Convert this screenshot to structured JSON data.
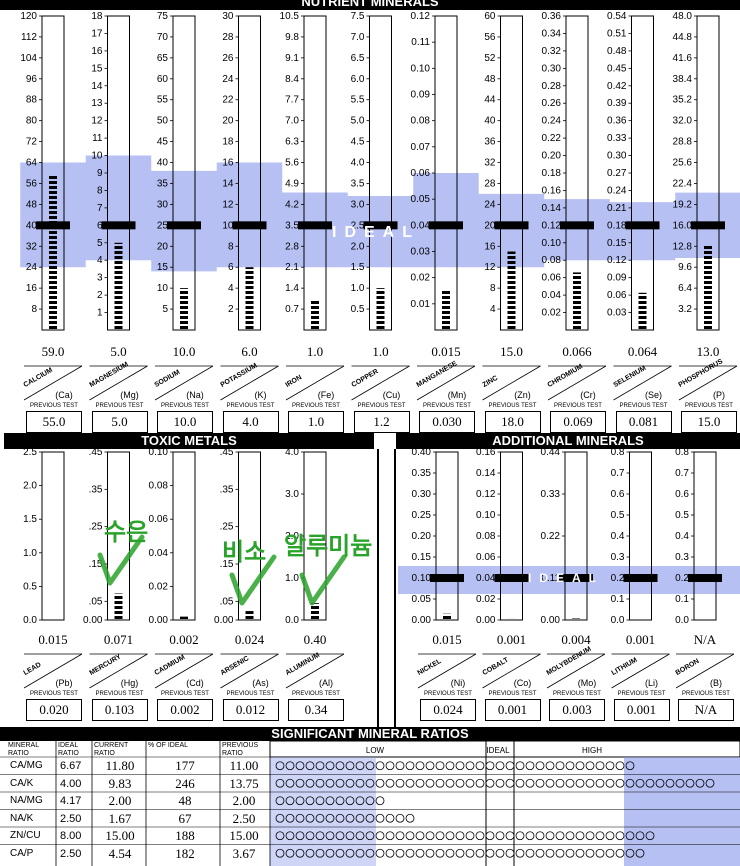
{
  "sections": {
    "nutrient": "NUTRIENT MINERALS",
    "toxic": "TOXIC METALS",
    "additional": "ADDITIONAL MINERALS",
    "ratios": "SIGNIFICANT MINERAL RATIOS"
  },
  "ideal_label": "IDEAL",
  "previous_test_label": "PREVIOUS TEST",
  "colors": {
    "band": "#aeb9f2",
    "bar": "#000000",
    "ideal_marker": "#000000",
    "check": "#2aa32a"
  },
  "chart_data": [
    {
      "type": "bar",
      "title": "NUTRIENT MINERALS",
      "minerals": [
        {
          "name": "CALCIUM",
          "symbol": "(Ca)",
          "value": "59.0",
          "previous": "55.0",
          "max": 120,
          "ticks": [
            "120",
            "112",
            "104",
            "96",
            "88",
            "80",
            "72",
            "64",
            "56",
            "48",
            "40",
            "32",
            "24",
            "16",
            "8"
          ],
          "tickvals": [
            120,
            112,
            104,
            96,
            88,
            80,
            72,
            64,
            56,
            48,
            40,
            32,
            24,
            16,
            8
          ],
          "ideal": 40,
          "band": [
            24,
            64
          ],
          "level": 59
        },
        {
          "name": "MAGNESIUM",
          "symbol": "(Mg)",
          "value": "5.0",
          "previous": "5.0",
          "max": 18,
          "ticks": [
            "18",
            "17",
            "16",
            "15",
            "14",
            "13",
            "12",
            "11",
            "10",
            "9",
            "8",
            "7",
            "6",
            "5",
            "4",
            "3",
            "2",
            "1"
          ],
          "tickvals": [
            18,
            17,
            16,
            15,
            14,
            13,
            12,
            11,
            10,
            9,
            8,
            7,
            6,
            5,
            4,
            3,
            2,
            1
          ],
          "ideal": 6,
          "band": [
            4,
            10
          ],
          "level": 5
        },
        {
          "name": "SODIUM",
          "symbol": "(Na)",
          "value": "10.0",
          "previous": "10.0",
          "max": 75,
          "ticks": [
            "75",
            "70",
            "65",
            "60",
            "55",
            "50",
            "45",
            "40",
            "35",
            "30",
            "25",
            "20",
            "15",
            "10",
            "5"
          ],
          "tickvals": [
            75,
            70,
            65,
            60,
            55,
            50,
            45,
            40,
            35,
            30,
            25,
            20,
            15,
            10,
            5
          ],
          "ideal": 25,
          "band": [
            14,
            38
          ],
          "level": 10
        },
        {
          "name": "POTASSIUM",
          "symbol": "(K)",
          "value": "6.0",
          "previous": "4.0",
          "max": 30,
          "ticks": [
            "30",
            "28",
            "26",
            "24",
            "22",
            "20",
            "18",
            "16",
            "14",
            "12",
            "10",
            "8",
            "6",
            "4",
            "2"
          ],
          "tickvals": [
            30,
            28,
            26,
            24,
            22,
            20,
            18,
            16,
            14,
            12,
            10,
            8,
            6,
            4,
            2
          ],
          "ideal": 10,
          "band": [
            6,
            16
          ],
          "level": 6
        },
        {
          "name": "IRON",
          "symbol": "(Fe)",
          "value": "1.0",
          "previous": "1.0",
          "max": 10.5,
          "ticks": [
            "10.5",
            "9.8",
            "9.1",
            "8.4",
            "7.7",
            "7.0",
            "6.3",
            "5.6",
            "4.9",
            "4.2",
            "3.5",
            "2.8",
            "2.1",
            "1.4",
            "0.7"
          ],
          "tickvals": [
            10.5,
            9.8,
            9.1,
            8.4,
            7.7,
            7.0,
            6.3,
            5.6,
            4.9,
            4.2,
            3.5,
            2.8,
            2.1,
            1.4,
            0.7
          ],
          "ideal": 3.5,
          "band": [
            2.1,
            4.6
          ],
          "level": 1
        },
        {
          "name": "COPPER",
          "symbol": "(Cu)",
          "value": "1.0",
          "previous": "1.2",
          "max": 7.5,
          "ticks": [
            "7.5",
            "7.0",
            "6.5",
            "6.0",
            "5.5",
            "5.0",
            "4.5",
            "4.0",
            "3.5",
            "3.0",
            "2.5",
            "2.0",
            "1.5",
            "1.0",
            "0.5"
          ],
          "tickvals": [
            7.5,
            7.0,
            6.5,
            6.0,
            5.5,
            5.0,
            4.5,
            4.0,
            3.5,
            3.0,
            2.5,
            2.0,
            1.5,
            1.0,
            0.5
          ],
          "ideal": 2.5,
          "band": [
            1.5,
            3.2
          ],
          "level": 1
        },
        {
          "name": "MANGANESE",
          "symbol": "(Mn)",
          "value": "0.015",
          "previous": "0.030",
          "max": 0.12,
          "ticks": [
            "0.12",
            "0.11",
            "0.10",
            "0.09",
            "0.08",
            "0.07",
            "0.06",
            "0.05",
            "0.04",
            "0.03",
            "0.02",
            "0.01"
          ],
          "tickvals": [
            0.12,
            0.11,
            0.1,
            0.09,
            0.08,
            0.07,
            0.06,
            0.05,
            0.04,
            0.03,
            0.02,
            0.01
          ],
          "ideal": 0.04,
          "band": [
            0.024,
            0.06
          ],
          "level": 0.015
        },
        {
          "name": "ZINC",
          "symbol": "(Zn)",
          "value": "15.0",
          "previous": "18.0",
          "max": 60,
          "ticks": [
            "60",
            "56",
            "52",
            "48",
            "44",
            "40",
            "36",
            "32",
            "28",
            "24",
            "20",
            "16",
            "12",
            "8",
            "4"
          ],
          "tickvals": [
            60,
            56,
            52,
            48,
            44,
            40,
            36,
            32,
            28,
            24,
            20,
            16,
            12,
            8,
            4
          ],
          "ideal": 20,
          "band": [
            12,
            26
          ],
          "level": 15
        },
        {
          "name": "CHROMIUM",
          "symbol": "(Cr)",
          "value": "0.066",
          "previous": "0.069",
          "max": 0.36,
          "ticks": [
            "0.36",
            "0.34",
            "0.32",
            "0.30",
            "0.28",
            "0.26",
            "0.24",
            "0.22",
            "0.20",
            "0.18",
            "0.16",
            "0.14",
            "0.12",
            "0.10",
            "0.08",
            "0.06",
            "0.04",
            "0.02"
          ],
          "tickvals": [
            0.36,
            0.34,
            0.32,
            0.3,
            0.28,
            0.26,
            0.24,
            0.22,
            0.2,
            0.18,
            0.16,
            0.14,
            0.12,
            0.1,
            0.08,
            0.06,
            0.04,
            0.02
          ],
          "ideal": 0.12,
          "band": [
            0.08,
            0.15
          ],
          "level": 0.066
        },
        {
          "name": "SELENIUM",
          "symbol": "(Se)",
          "value": "0.064",
          "previous": "0.081",
          "max": 0.54,
          "ticks": [
            "0.54",
            "0.51",
            "0.48",
            "0.45",
            "0.42",
            "0.39",
            "0.36",
            "0.33",
            "0.30",
            "0.27",
            "0.24",
            "0.21",
            "0.18",
            "0.15",
            "0.12",
            "0.09",
            "0.06",
            "0.03"
          ],
          "tickvals": [
            0.54,
            0.51,
            0.48,
            0.45,
            0.42,
            0.39,
            0.36,
            0.33,
            0.3,
            0.27,
            0.24,
            0.21,
            0.18,
            0.15,
            0.12,
            0.09,
            0.06,
            0.03
          ],
          "ideal": 0.18,
          "band": [
            0.12,
            0.22
          ],
          "level": 0.064
        },
        {
          "name": "PHOSPHORUS",
          "symbol": "(P)",
          "value": "13.0",
          "previous": "15.0",
          "max": 48,
          "ticks": [
            "48.0",
            "44.8",
            "41.6",
            "38.4",
            "35.2",
            "32.0",
            "28.8",
            "25.6",
            "22.4",
            "19.2",
            "16.0",
            "12.8",
            "9.6",
            "6.4",
            "3.2"
          ],
          "tickvals": [
            48,
            44.8,
            41.6,
            38.4,
            35.2,
            32,
            28.8,
            25.6,
            22.4,
            19.2,
            16,
            12.8,
            9.6,
            6.4,
            3.2
          ],
          "ideal": 16,
          "band": [
            11,
            21
          ],
          "level": 13
        }
      ]
    },
    {
      "type": "bar",
      "title": "TOXIC METALS",
      "minerals": [
        {
          "name": "LEAD",
          "symbol": "(Pb)",
          "value": "0.015",
          "previous": "0.020",
          "max": 2.5,
          "ticks": [
            "2.5",
            "2.0",
            "1.5",
            "1.0",
            "0.5",
            "0.0"
          ],
          "tickvals": [
            2.5,
            2.0,
            1.5,
            1.0,
            0.5,
            0.0
          ],
          "level": 0.015
        },
        {
          "name": "MERCURY",
          "symbol": "(Hg)",
          "value": "0.071",
          "previous": "0.103",
          "max": 0.45,
          "ticks": [
            ".45",
            ".35",
            ".25",
            ".15",
            ".05",
            "0.00"
          ],
          "tickvals": [
            0.45,
            0.35,
            0.25,
            0.15,
            0.05,
            0.0
          ],
          "level": 0.071
        },
        {
          "name": "CADMIUM",
          "symbol": "(Cd)",
          "value": "0.002",
          "previous": "0.002",
          "max": 0.1,
          "ticks": [
            "0.10",
            "0.08",
            "0.06",
            "0.04",
            "0.02",
            "0.00"
          ],
          "tickvals": [
            0.1,
            0.08,
            0.06,
            0.04,
            0.02,
            0.0
          ],
          "level": 0.002
        },
        {
          "name": "ARSENIC",
          "symbol": "(As)",
          "value": "0.024",
          "previous": "0.012",
          "max": 0.45,
          "ticks": [
            ".45",
            ".35",
            ".25",
            ".15",
            ".05",
            "0.00"
          ],
          "tickvals": [
            0.45,
            0.35,
            0.25,
            0.15,
            0.05,
            0.0
          ],
          "level": 0.024
        },
        {
          "name": "ALUMINUM",
          "symbol": "(Al)",
          "value": "0.40",
          "previous": "0.34",
          "max": 4.0,
          "ticks": [
            "4.0",
            "3.0",
            "2.0",
            "1.0",
            "0.0"
          ],
          "tickvals": [
            4,
            3,
            2,
            1,
            0
          ],
          "level": 0.4
        }
      ],
      "annotations": [
        {
          "text": "수은",
          "near": "MERCURY"
        },
        {
          "text": "비소",
          "near": "ARSENIC"
        },
        {
          "text": "알루미늄",
          "near": "ALUMINUM"
        }
      ]
    },
    {
      "type": "bar",
      "title": "ADDITIONAL MINERALS",
      "minerals": [
        {
          "name": "NICKEL",
          "symbol": "(Ni)",
          "value": "0.015",
          "previous": "0.024",
          "max": 0.4,
          "ticks": [
            "0.40",
            "0.35",
            "0.30",
            "0.25",
            "0.20",
            "0.15",
            "0.10",
            "0.05",
            "0.00"
          ],
          "tickvals": [
            0.4,
            0.35,
            0.3,
            0.25,
            0.2,
            0.15,
            0.1,
            0.05,
            0.0
          ],
          "ideal": 0.1,
          "level": 0.015
        },
        {
          "name": "COBALT",
          "symbol": "(Co)",
          "value": "0.001",
          "previous": "0.001",
          "max": 0.16,
          "ticks": [
            "0.16",
            "0.14",
            "0.12",
            "0.10",
            "0.08",
            "0.06",
            "0.04",
            "0.02",
            "0.00"
          ],
          "tickvals": [
            0.16,
            0.14,
            0.12,
            0.1,
            0.08,
            0.06,
            0.04,
            0.02,
            0.0
          ],
          "ideal": 0.04,
          "level": 0.001
        },
        {
          "name": "MOLYBDENUM",
          "symbol": "(Mo)",
          "value": "0.004",
          "previous": "0.003",
          "max": 0.44,
          "ticks": [
            "0.44",
            "0.33",
            "0.22",
            "0.11",
            "0.00"
          ],
          "tickvals": [
            0.44,
            0.33,
            0.22,
            0.11,
            0.0
          ],
          "ideal": 0.11,
          "level": 0.004
        },
        {
          "name": "LITHIUM",
          "symbol": "(Li)",
          "value": "0.001",
          "previous": "0.001",
          "max": 0.8,
          "ticks": [
            "0.8",
            "0.7",
            "0.6",
            "0.5",
            "0.4",
            "0.3",
            "0.2",
            "0.1",
            "0.0"
          ],
          "tickvals": [
            0.8,
            0.7,
            0.6,
            0.5,
            0.4,
            0.3,
            0.2,
            0.1,
            0.0
          ],
          "ideal": 0.2,
          "level": 0.001
        },
        {
          "name": "BORON",
          "symbol": "(B)",
          "value": "N/A",
          "previous": "N/A",
          "max": 0.8,
          "ticks": [
            "0.8",
            "0.7",
            "0.6",
            "0.5",
            "0.4",
            "0.3",
            "0.2",
            "0.1",
            "0.0"
          ],
          "tickvals": [
            0.8,
            0.7,
            0.6,
            0.5,
            0.4,
            0.3,
            0.2,
            0.1,
            0.0
          ],
          "ideal": 0.2,
          "level": 0
        }
      ]
    },
    {
      "type": "table",
      "title": "SIGNIFICANT MINERAL RATIOS",
      "headers": [
        "MINERAL RATIO",
        "IDEAL RATIO",
        "CURRENT RATIO",
        "% OF IDEAL",
        "PREVIOUS RATIO"
      ],
      "scale_labels": [
        "LOW",
        "IDEAL",
        "HIGH"
      ],
      "rows": [
        {
          "ratio": "CA/MG",
          "ideal": "6.67",
          "current": "11.80",
          "pct": "177",
          "previous": "11.00",
          "circles": 36
        },
        {
          "ratio": "CA/K",
          "ideal": "4.00",
          "current": "9.83",
          "pct": "246",
          "previous": "13.75",
          "circles": 44
        },
        {
          "ratio": "NA/MG",
          "ideal": "4.17",
          "current": "2.00",
          "pct": "48",
          "previous": "2.00",
          "circles": 11
        },
        {
          "ratio": "NA/K",
          "ideal": "2.50",
          "current": "1.67",
          "pct": "67",
          "previous": "2.50",
          "circles": 14
        },
        {
          "ratio": "ZN/CU",
          "ideal": "8.00",
          "current": "15.00",
          "pct": "188",
          "previous": "15.00",
          "circles": 38
        },
        {
          "ratio": "CA/P",
          "ideal": "2.50",
          "current": "4.54",
          "pct": "182",
          "previous": "3.67",
          "circles": 37
        }
      ]
    }
  ]
}
